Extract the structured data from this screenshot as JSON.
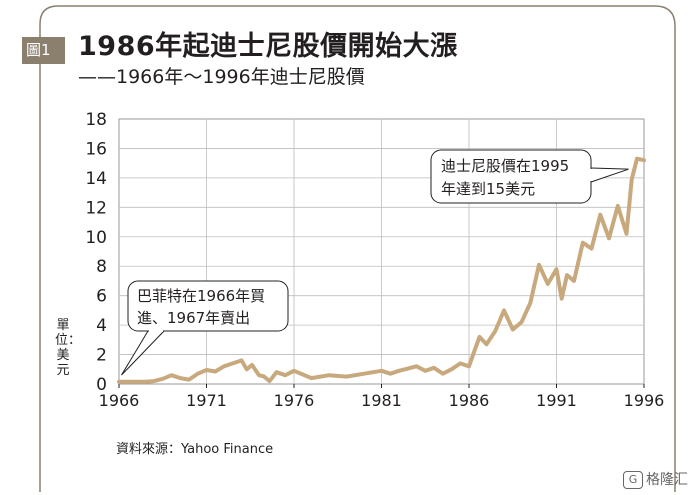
{
  "figure": {
    "badge": "圖1",
    "title": "1986年起迪士尼股價開始大漲",
    "subtitle": "——1966年～1996年迪士尼股價",
    "unit": "單位：美元",
    "source": "資料來源：Yahoo Finance",
    "watermark": "格隆汇",
    "line_color": "#c8a97e",
    "frame_color": "#8b7f6e"
  },
  "chart_data": {
    "type": "line",
    "title": "1986年起迪士尼股價開始大漲",
    "subtitle": "1966年～1996年迪士尼股價",
    "ylabel": "單位：美元",
    "xlim": [
      1966,
      1996
    ],
    "ylim": [
      0,
      18
    ],
    "x_ticks": [
      1966,
      1971,
      1976,
      1981,
      1986,
      1991,
      1996
    ],
    "y_ticks": [
      0,
      2,
      4,
      6,
      8,
      10,
      12,
      14,
      16,
      18
    ],
    "grid": true,
    "x": [
      1966,
      1967,
      1967.5,
      1968,
      1968.5,
      1969,
      1969.5,
      1970,
      1970.5,
      1971,
      1971.5,
      1972,
      1972.5,
      1973,
      1973.3,
      1973.6,
      1974,
      1974.3,
      1974.6,
      1975,
      1975.5,
      1976,
      1977,
      1978,
      1979,
      1980,
      1981,
      1981.5,
      1982,
      1983,
      1983.5,
      1984,
      1984.5,
      1985,
      1985.5,
      1986,
      1986.3,
      1986.6,
      1987,
      1987.5,
      1988,
      1988.5,
      1989,
      1989.5,
      1990,
      1990.5,
      1991,
      1991.3,
      1991.6,
      1992,
      1992.5,
      1993,
      1993.5,
      1994,
      1994.5,
      1995,
      1995.3,
      1995.6,
      1996
    ],
    "y": [
      0.15,
      0.15,
      0.15,
      0.2,
      0.35,
      0.6,
      0.4,
      0.3,
      0.7,
      0.95,
      0.85,
      1.2,
      1.4,
      1.6,
      1.0,
      1.3,
      0.6,
      0.5,
      0.2,
      0.8,
      0.6,
      0.9,
      0.4,
      0.6,
      0.5,
      0.7,
      0.9,
      0.7,
      0.9,
      1.2,
      0.9,
      1.1,
      0.7,
      1.0,
      1.4,
      1.2,
      2.2,
      3.2,
      2.7,
      3.6,
      5.0,
      3.7,
      4.2,
      5.5,
      8.1,
      6.8,
      7.8,
      5.8,
      7.4,
      7.0,
      9.6,
      9.2,
      11.5,
      9.9,
      12.1,
      10.2,
      13.9,
      15.3,
      15.2
    ],
    "annotations": [
      {
        "text_lines": [
          "巴菲特在1966年買",
          "進、1967年賣出"
        ],
        "x": 1967,
        "y": 0.2
      },
      {
        "text_lines": [
          "迪士尼股價在1995",
          "年達到15美元"
        ],
        "x": 1995,
        "y": 15
      }
    ]
  }
}
